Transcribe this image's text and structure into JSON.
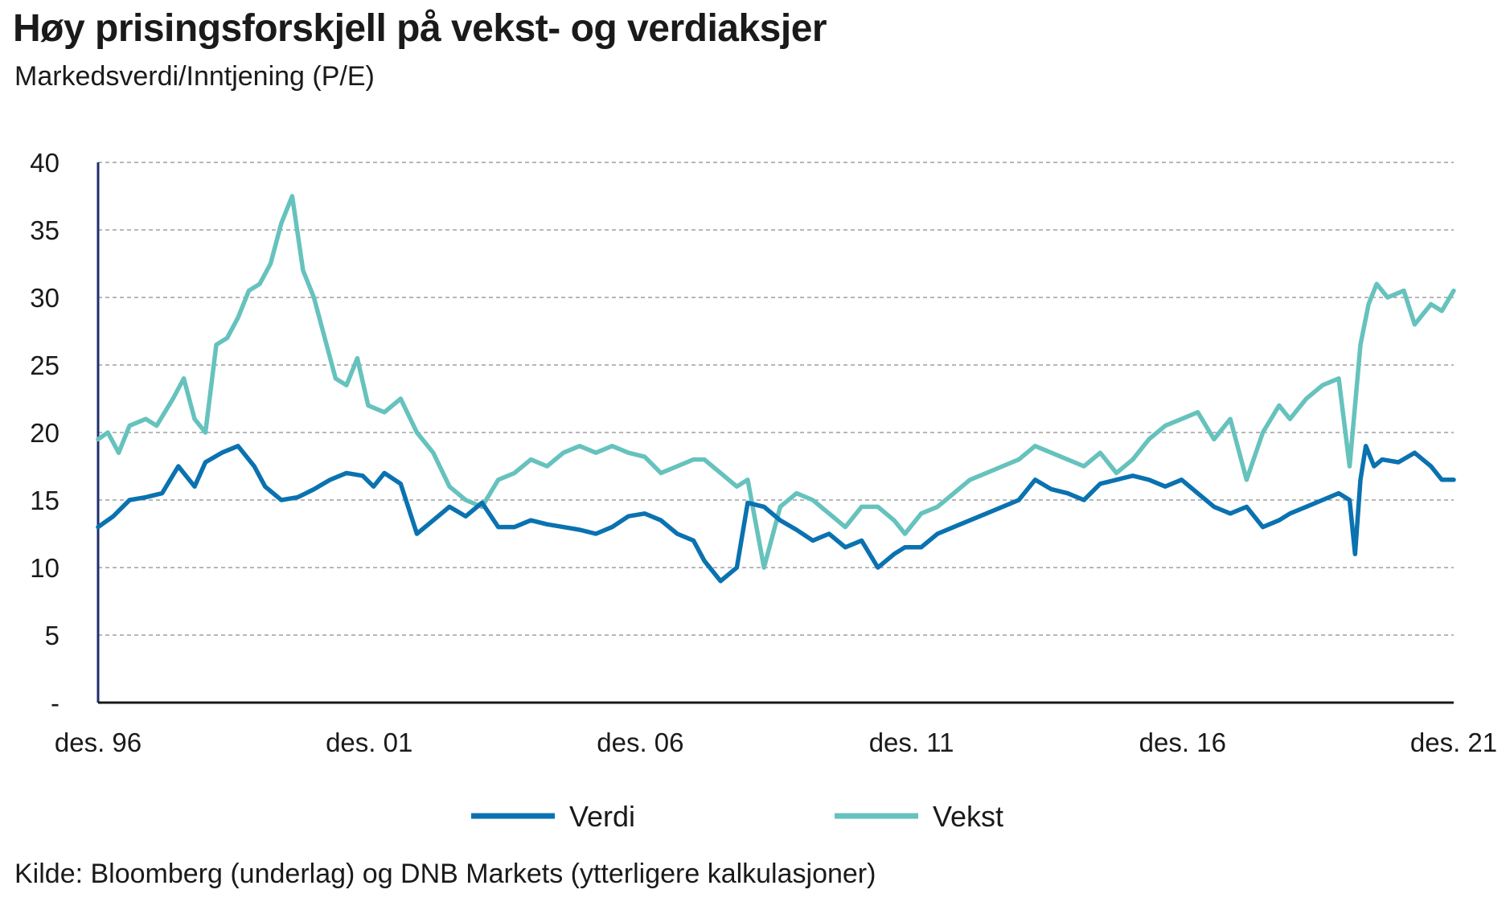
{
  "title": "Høy prisingsforskjell på vekst- og verdiaksjer",
  "subtitle": "Markedsverdi/Inntjening (P/E)",
  "source": "Kilde: Bloomberg (underlag) og DNB Markets (ytterligere kalkulasjoner)",
  "colors": {
    "verdi": "#0a72b0",
    "vekst": "#66c2bd",
    "grid": "#8c8c8c",
    "axis": "#1f2f6e"
  },
  "chart_data": {
    "type": "line",
    "ylim": [
      0,
      40
    ],
    "xlim": [
      1996.92,
      2021.92
    ],
    "y_ticks": [
      {
        "value": 0,
        "label": "-"
      },
      {
        "value": 5,
        "label": "5"
      },
      {
        "value": 10,
        "label": "10"
      },
      {
        "value": 15,
        "label": "15"
      },
      {
        "value": 20,
        "label": "20"
      },
      {
        "value": 25,
        "label": "25"
      },
      {
        "value": 30,
        "label": "30"
      },
      {
        "value": 35,
        "label": "35"
      },
      {
        "value": 40,
        "label": "40"
      }
    ],
    "x_ticks": [
      {
        "value": 1996.92,
        "label": "des. 96"
      },
      {
        "value": 2001.92,
        "label": "des. 01"
      },
      {
        "value": 2006.92,
        "label": "des. 06"
      },
      {
        "value": 2011.92,
        "label": "des. 11"
      },
      {
        "value": 2016.92,
        "label": "des. 16"
      },
      {
        "value": 2021.92,
        "label": "des. 21"
      }
    ],
    "grid": "horizontal dashed",
    "legend_position": "bottom",
    "series": [
      {
        "name": "Verdi",
        "x": [
          1996.92,
          1997.2,
          1997.5,
          1997.8,
          1998.1,
          1998.4,
          1998.7,
          1998.9,
          1999.2,
          1999.5,
          1999.8,
          2000.0,
          2000.3,
          2000.6,
          2000.9,
          2001.2,
          2001.5,
          2001.8,
          2002.0,
          2002.2,
          2002.5,
          2002.8,
          2003.1,
          2003.4,
          2003.7,
          2004.0,
          2004.3,
          2004.6,
          2004.9,
          2005.2,
          2005.5,
          2005.8,
          2006.1,
          2006.4,
          2006.7,
          2007.0,
          2007.3,
          2007.6,
          2007.9,
          2008.1,
          2008.4,
          2008.7,
          2008.9,
          2009.2,
          2009.5,
          2009.8,
          2010.1,
          2010.4,
          2010.7,
          2011.0,
          2011.3,
          2011.6,
          2011.8,
          2012.1,
          2012.4,
          2012.7,
          2013.0,
          2013.3,
          2013.6,
          2013.9,
          2014.2,
          2014.5,
          2014.8,
          2015.1,
          2015.4,
          2015.7,
          2016.0,
          2016.3,
          2016.6,
          2016.9,
          2017.2,
          2017.5,
          2017.8,
          2018.1,
          2018.4,
          2018.7,
          2018.9,
          2019.2,
          2019.5,
          2019.8,
          2020.0,
          2020.1,
          2020.2,
          2020.3,
          2020.45,
          2020.6,
          2020.9,
          2021.2,
          2021.5,
          2021.7,
          2021.92
        ],
        "values": [
          13.0,
          13.8,
          15.0,
          15.2,
          15.5,
          17.5,
          16.0,
          17.8,
          18.5,
          19.0,
          17.5,
          16.0,
          15.0,
          15.2,
          15.8,
          16.5,
          17.0,
          16.8,
          16.0,
          17.0,
          16.2,
          12.5,
          13.5,
          14.5,
          13.8,
          14.8,
          13.0,
          13.0,
          13.5,
          13.2,
          13.0,
          12.8,
          12.5,
          13.0,
          13.8,
          14.0,
          13.5,
          12.5,
          12.0,
          10.5,
          9.0,
          10.0,
          14.8,
          14.5,
          13.5,
          12.8,
          12.0,
          12.5,
          11.5,
          12.0,
          10.0,
          11.0,
          11.5,
          11.5,
          12.5,
          13.0,
          13.5,
          14.0,
          14.5,
          15.0,
          16.5,
          15.8,
          15.5,
          15.0,
          16.2,
          16.5,
          16.8,
          16.5,
          16.0,
          16.5,
          15.5,
          14.5,
          14.0,
          14.5,
          13.0,
          13.5,
          14.0,
          14.5,
          15.0,
          15.5,
          15.0,
          11.0,
          16.5,
          19.0,
          17.5,
          18.0,
          17.8,
          18.5,
          17.5,
          16.5,
          16.5
        ]
      },
      {
        "name": "Vekst",
        "x": [
          1996.92,
          1997.1,
          1997.3,
          1997.5,
          1997.8,
          1998.0,
          1998.3,
          1998.5,
          1998.7,
          1998.9,
          1999.1,
          1999.3,
          1999.5,
          1999.7,
          1999.9,
          2000.1,
          2000.3,
          2000.5,
          2000.7,
          2000.9,
          2001.1,
          2001.3,
          2001.5,
          2001.7,
          2001.9,
          2002.2,
          2002.5,
          2002.8,
          2003.1,
          2003.4,
          2003.7,
          2004.0,
          2004.3,
          2004.6,
          2004.9,
          2005.2,
          2005.5,
          2005.8,
          2006.1,
          2006.4,
          2006.7,
          2007.0,
          2007.3,
          2007.6,
          2007.9,
          2008.1,
          2008.4,
          2008.7,
          2008.9,
          2009.2,
          2009.5,
          2009.8,
          2010.1,
          2010.4,
          2010.7,
          2011.0,
          2011.3,
          2011.6,
          2011.8,
          2012.1,
          2012.4,
          2012.7,
          2013.0,
          2013.3,
          2013.6,
          2013.9,
          2014.2,
          2014.5,
          2014.8,
          2015.1,
          2015.4,
          2015.7,
          2016.0,
          2016.3,
          2016.6,
          2016.9,
          2017.2,
          2017.5,
          2017.8,
          2018.1,
          2018.4,
          2018.7,
          2018.9,
          2019.2,
          2019.5,
          2019.8,
          2020.0,
          2020.1,
          2020.2,
          2020.35,
          2020.5,
          2020.7,
          2021.0,
          2021.2,
          2021.5,
          2021.7,
          2021.92
        ],
        "values": [
          19.5,
          20.0,
          18.5,
          20.5,
          21.0,
          20.5,
          22.5,
          24.0,
          21.0,
          20.0,
          26.5,
          27.0,
          28.5,
          30.5,
          31.0,
          32.5,
          35.5,
          37.5,
          32.0,
          30.0,
          27.0,
          24.0,
          23.5,
          25.5,
          22.0,
          21.5,
          22.5,
          20.0,
          18.5,
          16.0,
          15.0,
          14.5,
          16.5,
          17.0,
          18.0,
          17.5,
          18.5,
          19.0,
          18.5,
          19.0,
          18.5,
          18.2,
          17.0,
          17.5,
          18.0,
          18.0,
          17.0,
          16.0,
          16.5,
          10.0,
          14.5,
          15.5,
          15.0,
          14.0,
          13.0,
          14.5,
          14.5,
          13.5,
          12.5,
          14.0,
          14.5,
          15.5,
          16.5,
          17.0,
          17.5,
          18.0,
          19.0,
          18.5,
          18.0,
          17.5,
          18.5,
          17.0,
          18.0,
          19.5,
          20.5,
          21.0,
          21.5,
          19.5,
          21.0,
          16.5,
          20.0,
          22.0,
          21.0,
          22.5,
          23.5,
          24.0,
          17.5,
          22.0,
          26.5,
          29.5,
          31.0,
          30.0,
          30.5,
          28.0,
          29.5,
          29.0,
          30.5
        ]
      }
    ]
  }
}
